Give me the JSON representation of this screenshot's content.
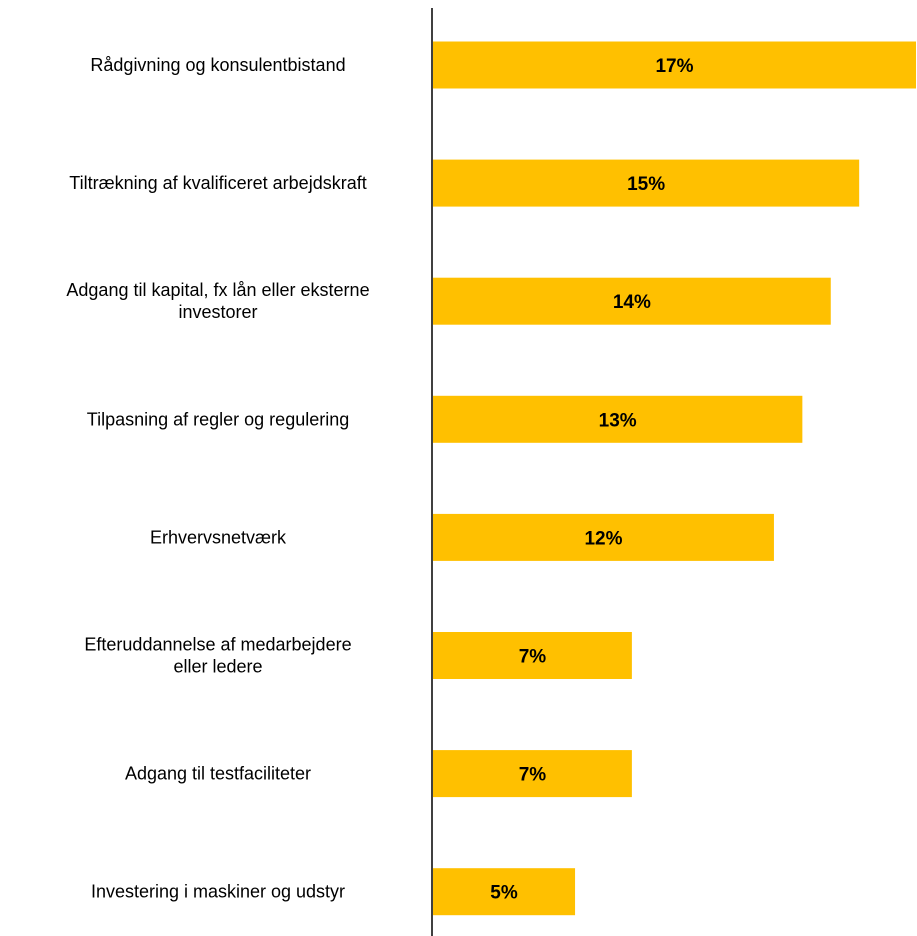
{
  "chart_data": {
    "type": "bar",
    "orientation": "horizontal",
    "categories": [
      [
        "Rådgivning og konsulentbistand"
      ],
      [
        "Tiltrækning af kvalificeret arbejdskraft"
      ],
      [
        "Adgang til kapital, fx lån eller eksterne",
        "investorer"
      ],
      [
        "Tilpasning af regler og regulering"
      ],
      [
        "Erhvervsnetværk"
      ],
      [
        "Efteruddannelse af medarbejdere",
        "eller ledere"
      ],
      [
        "Adgang til testfaciliteter"
      ],
      [
        "Investering i maskiner og udstyr"
      ]
    ],
    "values": [
      17,
      15,
      14,
      13,
      12,
      7,
      7,
      5
    ],
    "data_labels": [
      "17%",
      "15%",
      "14%",
      "13%",
      "12%",
      "7%",
      "7%",
      "5%"
    ],
    "xlim": [
      0,
      17
    ],
    "grid": false,
    "legend": "none",
    "bar_color": "#FFC000",
    "axis_color": "#000000"
  }
}
